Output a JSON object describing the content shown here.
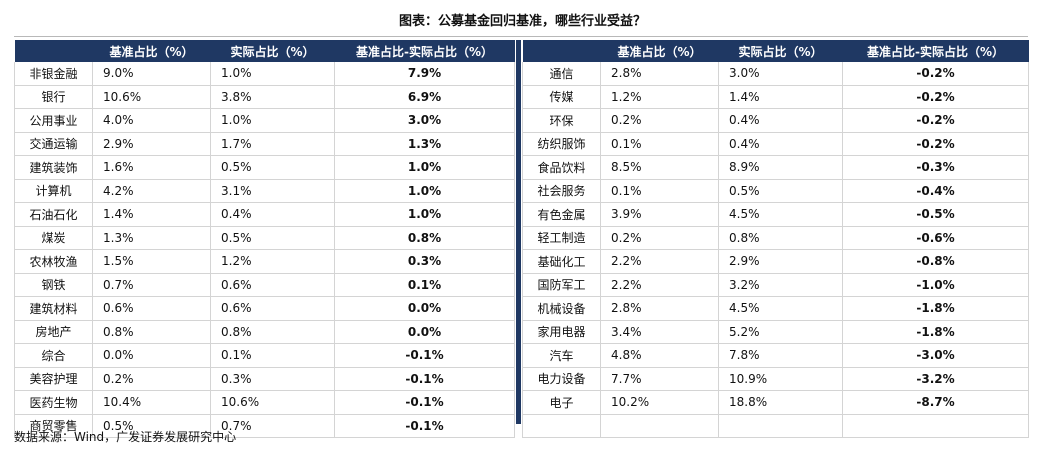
{
  "title": "图表：公募基金回归基准，哪些行业受益？",
  "headers": [
    "",
    "基准占比（%）",
    "实际占比（%）",
    "基准占比-实际占比（%）"
  ],
  "left_rows": [
    {
      "industry": "非银金融",
      "benchmark": "9.0%",
      "actual": "1.0%",
      "diff": "7.9%"
    },
    {
      "industry": "银行",
      "benchmark": "10.6%",
      "actual": "3.8%",
      "diff": "6.9%"
    },
    {
      "industry": "公用事业",
      "benchmark": "4.0%",
      "actual": "1.0%",
      "diff": "3.0%"
    },
    {
      "industry": "交通运输",
      "benchmark": "2.9%",
      "actual": "1.7%",
      "diff": "1.3%"
    },
    {
      "industry": "建筑装饰",
      "benchmark": "1.6%",
      "actual": "0.5%",
      "diff": "1.0%"
    },
    {
      "industry": "计算机",
      "benchmark": "4.2%",
      "actual": "3.1%",
      "diff": "1.0%"
    },
    {
      "industry": "石油石化",
      "benchmark": "1.4%",
      "actual": "0.4%",
      "diff": "1.0%"
    },
    {
      "industry": "煤炭",
      "benchmark": "1.3%",
      "actual": "0.5%",
      "diff": "0.8%"
    },
    {
      "industry": "农林牧渔",
      "benchmark": "1.5%",
      "actual": "1.2%",
      "diff": "0.3%"
    },
    {
      "industry": "钢铁",
      "benchmark": "0.7%",
      "actual": "0.6%",
      "diff": "0.1%"
    },
    {
      "industry": "建筑材料",
      "benchmark": "0.6%",
      "actual": "0.6%",
      "diff": "0.0%"
    },
    {
      "industry": "房地产",
      "benchmark": "0.8%",
      "actual": "0.8%",
      "diff": "0.0%"
    },
    {
      "industry": "综合",
      "benchmark": "0.0%",
      "actual": "0.1%",
      "diff": "-0.1%"
    },
    {
      "industry": "美容护理",
      "benchmark": "0.2%",
      "actual": "0.3%",
      "diff": "-0.1%"
    },
    {
      "industry": "医药生物",
      "benchmark": "10.4%",
      "actual": "10.6%",
      "diff": "-0.1%"
    },
    {
      "industry": "商贸零售",
      "benchmark": "0.5%",
      "actual": "0.7%",
      "diff": "-0.1%"
    }
  ],
  "right_rows": [
    {
      "industry": "通信",
      "benchmark": "2.8%",
      "actual": "3.0%",
      "diff": "-0.2%"
    },
    {
      "industry": "传媒",
      "benchmark": "1.2%",
      "actual": "1.4%",
      "diff": "-0.2%"
    },
    {
      "industry": "环保",
      "benchmark": "0.2%",
      "actual": "0.4%",
      "diff": "-0.2%"
    },
    {
      "industry": "纺织服饰",
      "benchmark": "0.1%",
      "actual": "0.4%",
      "diff": "-0.2%"
    },
    {
      "industry": "食品饮料",
      "benchmark": "8.5%",
      "actual": "8.9%",
      "diff": "-0.3%"
    },
    {
      "industry": "社会服务",
      "benchmark": "0.1%",
      "actual": "0.5%",
      "diff": "-0.4%"
    },
    {
      "industry": "有色金属",
      "benchmark": "3.9%",
      "actual": "4.5%",
      "diff": "-0.5%"
    },
    {
      "industry": "轻工制造",
      "benchmark": "0.2%",
      "actual": "0.8%",
      "diff": "-0.6%"
    },
    {
      "industry": "基础化工",
      "benchmark": "2.2%",
      "actual": "2.9%",
      "diff": "-0.8%"
    },
    {
      "industry": "国防军工",
      "benchmark": "2.2%",
      "actual": "3.2%",
      "diff": "-1.0%"
    },
    {
      "industry": "机械设备",
      "benchmark": "2.8%",
      "actual": "4.5%",
      "diff": "-1.8%"
    },
    {
      "industry": "家用电器",
      "benchmark": "3.4%",
      "actual": "5.2%",
      "diff": "-1.8%"
    },
    {
      "industry": "汽车",
      "benchmark": "4.8%",
      "actual": "7.8%",
      "diff": "-3.0%"
    },
    {
      "industry": "电力设备",
      "benchmark": "7.7%",
      "actual": "10.9%",
      "diff": "-3.2%"
    },
    {
      "industry": "电子",
      "benchmark": "10.2%",
      "actual": "18.8%",
      "diff": "-8.7%"
    },
    {
      "industry": "",
      "benchmark": "",
      "actual": "",
      "diff": ""
    }
  ],
  "source": "数据来源：Wind，广发证券发展研究中心",
  "colors": {
    "header_bg": "#1f3863",
    "header_text": "#ffffff",
    "grid": "#d4d4d4"
  }
}
